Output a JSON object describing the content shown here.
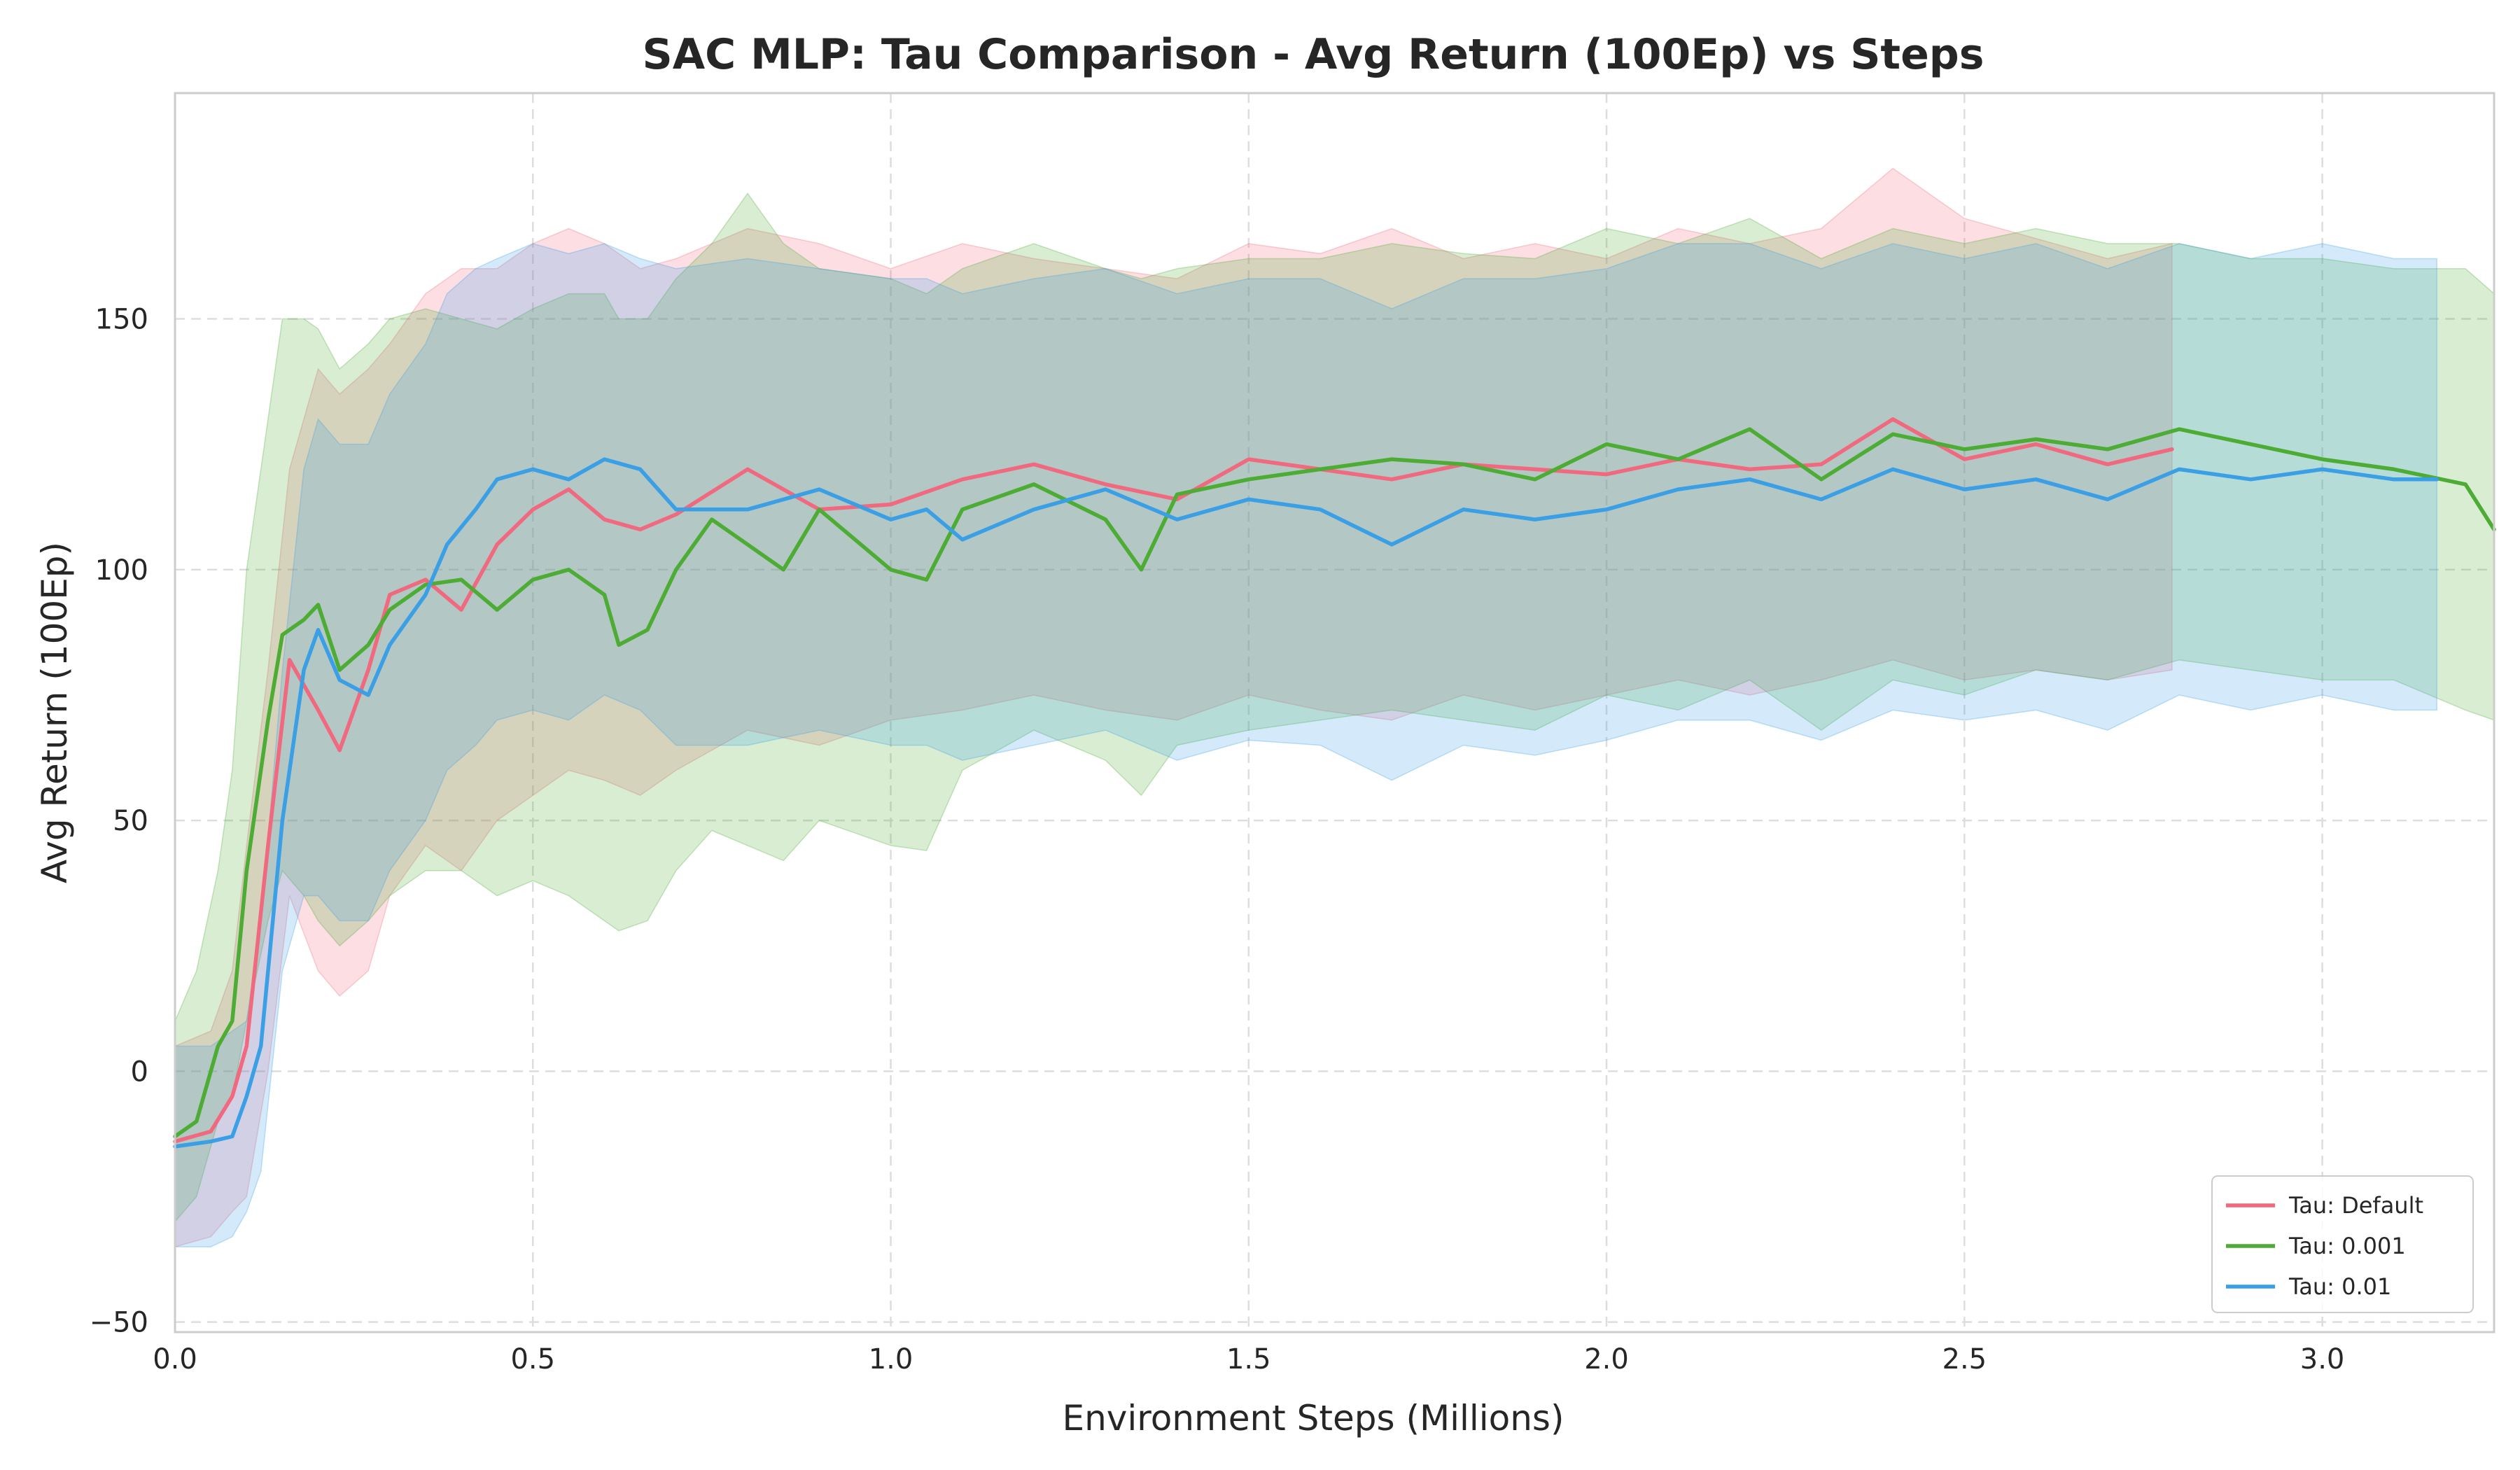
{
  "chart_data": {
    "type": "line",
    "title": "SAC MLP: Tau Comparison - Avg Return (100Ep) vs Steps",
    "xlabel": "Environment Steps (Millions)",
    "ylabel": "Avg Return (100Ep)",
    "xlim": [
      0,
      3.24
    ],
    "ylim": [
      -52,
      195
    ],
    "xticks": [
      0.0,
      0.5,
      1.0,
      1.5,
      2.0,
      2.5,
      3.0
    ],
    "xtick_labels": [
      "0.0",
      "0.5",
      "1.0",
      "1.5",
      "2.0",
      "2.5",
      "3.0"
    ],
    "yticks": [
      -50,
      0,
      50,
      100,
      150
    ],
    "ytick_labels": [
      "−50",
      "0",
      "50",
      "100",
      "150"
    ],
    "grid": true,
    "legend_position": "bottom-right",
    "series": [
      {
        "name": "Tau: Default",
        "color": "#f0697f",
        "x": [
          0.0,
          0.05,
          0.08,
          0.1,
          0.13,
          0.16,
          0.2,
          0.23,
          0.27,
          0.3,
          0.35,
          0.4,
          0.45,
          0.5,
          0.55,
          0.6,
          0.65,
          0.7,
          0.8,
          0.9,
          1.0,
          1.1,
          1.2,
          1.3,
          1.4,
          1.5,
          1.6,
          1.7,
          1.8,
          1.9,
          2.0,
          2.1,
          2.2,
          2.3,
          2.4,
          2.5,
          2.6,
          2.7,
          2.79
        ],
        "mean": [
          -14,
          -12,
          -5,
          5,
          45,
          82,
          72,
          64,
          80,
          95,
          98,
          92,
          105,
          112,
          116,
          110,
          108,
          111,
          120,
          112,
          113,
          118,
          121,
          117,
          114,
          122,
          120,
          118,
          121,
          120,
          119,
          122,
          120,
          121,
          130,
          122,
          125,
          121,
          124
        ],
        "upper": [
          5,
          8,
          20,
          45,
          80,
          120,
          140,
          135,
          140,
          145,
          155,
          160,
          160,
          165,
          168,
          165,
          160,
          162,
          168,
          165,
          160,
          165,
          162,
          160,
          158,
          165,
          163,
          168,
          162,
          165,
          162,
          168,
          165,
          168,
          180,
          170,
          166,
          162,
          165
        ],
        "lower": [
          -35,
          -33,
          -28,
          -25,
          0,
          35,
          20,
          15,
          20,
          35,
          45,
          40,
          50,
          55,
          60,
          58,
          55,
          60,
          68,
          65,
          70,
          72,
          75,
          72,
          70,
          75,
          72,
          70,
          75,
          72,
          75,
          78,
          75,
          78,
          82,
          78,
          80,
          78,
          80
        ]
      },
      {
        "name": "Tau: 0.001",
        "color": "#4dac34",
        "x": [
          0.0,
          0.03,
          0.06,
          0.08,
          0.1,
          0.13,
          0.15,
          0.18,
          0.2,
          0.23,
          0.27,
          0.3,
          0.35,
          0.4,
          0.45,
          0.5,
          0.55,
          0.6,
          0.62,
          0.66,
          0.7,
          0.75,
          0.8,
          0.85,
          0.9,
          1.0,
          1.05,
          1.1,
          1.2,
          1.3,
          1.35,
          1.4,
          1.5,
          1.6,
          1.7,
          1.8,
          1.9,
          2.0,
          2.1,
          2.2,
          2.3,
          2.4,
          2.5,
          2.6,
          2.7,
          2.8,
          2.9,
          3.0,
          3.1,
          3.2,
          3.24
        ],
        "mean": [
          -13,
          -10,
          5,
          10,
          40,
          70,
          87,
          90,
          93,
          80,
          85,
          92,
          97,
          98,
          92,
          98,
          100,
          95,
          85,
          88,
          100,
          110,
          105,
          100,
          112,
          100,
          98,
          112,
          117,
          110,
          100,
          115,
          118,
          120,
          122,
          121,
          118,
          125,
          122,
          128,
          118,
          127,
          124,
          126,
          124,
          128,
          125,
          122,
          120,
          117,
          108
        ],
        "upper": [
          10,
          20,
          40,
          60,
          100,
          130,
          150,
          150,
          148,
          140,
          145,
          150,
          152,
          150,
          148,
          152,
          155,
          155,
          150,
          150,
          158,
          165,
          175,
          165,
          160,
          158,
          155,
          160,
          165,
          160,
          158,
          160,
          162,
          162,
          165,
          163,
          162,
          168,
          165,
          170,
          162,
          168,
          165,
          168,
          165,
          165,
          162,
          162,
          160,
          160,
          155
        ],
        "lower": [
          -30,
          -25,
          -10,
          -5,
          10,
          30,
          40,
          35,
          30,
          25,
          30,
          35,
          40,
          40,
          35,
          38,
          35,
          30,
          28,
          30,
          40,
          48,
          45,
          42,
          50,
          45,
          44,
          60,
          68,
          62,
          55,
          65,
          68,
          70,
          72,
          70,
          68,
          75,
          72,
          78,
          68,
          78,
          75,
          80,
          78,
          82,
          80,
          78,
          78,
          72,
          70
        ]
      },
      {
        "name": "Tau: 0.01",
        "color": "#3b9fe6",
        "x": [
          0.0,
          0.05,
          0.08,
          0.1,
          0.12,
          0.15,
          0.18,
          0.2,
          0.23,
          0.27,
          0.3,
          0.35,
          0.38,
          0.42,
          0.45,
          0.5,
          0.55,
          0.6,
          0.65,
          0.7,
          0.8,
          0.9,
          1.0,
          1.05,
          1.1,
          1.2,
          1.3,
          1.4,
          1.5,
          1.6,
          1.7,
          1.8,
          1.9,
          2.0,
          2.1,
          2.2,
          2.3,
          2.4,
          2.5,
          2.6,
          2.7,
          2.8,
          2.9,
          3.0,
          3.1,
          3.16
        ],
        "mean": [
          -15,
          -14,
          -13,
          -5,
          5,
          50,
          80,
          88,
          78,
          75,
          85,
          95,
          105,
          112,
          118,
          120,
          118,
          122,
          120,
          112,
          112,
          116,
          110,
          112,
          106,
          112,
          116,
          110,
          114,
          112,
          105,
          112,
          110,
          112,
          116,
          118,
          114,
          120,
          116,
          118,
          114,
          120,
          118,
          120,
          118,
          118
        ],
        "upper": [
          5,
          5,
          8,
          10,
          30,
          80,
          120,
          130,
          125,
          125,
          135,
          145,
          155,
          160,
          162,
          165,
          163,
          165,
          162,
          160,
          162,
          160,
          158,
          158,
          155,
          158,
          160,
          155,
          158,
          158,
          152,
          158,
          158,
          160,
          165,
          165,
          160,
          165,
          162,
          165,
          160,
          165,
          162,
          165,
          162,
          162
        ],
        "lower": [
          -35,
          -35,
          -33,
          -28,
          -20,
          20,
          35,
          35,
          30,
          30,
          40,
          50,
          60,
          65,
          70,
          72,
          70,
          75,
          72,
          65,
          65,
          68,
          65,
          65,
          62,
          65,
          68,
          62,
          66,
          65,
          58,
          65,
          63,
          66,
          70,
          70,
          66,
          72,
          70,
          72,
          68,
          75,
          72,
          75,
          72,
          72
        ]
      }
    ]
  }
}
